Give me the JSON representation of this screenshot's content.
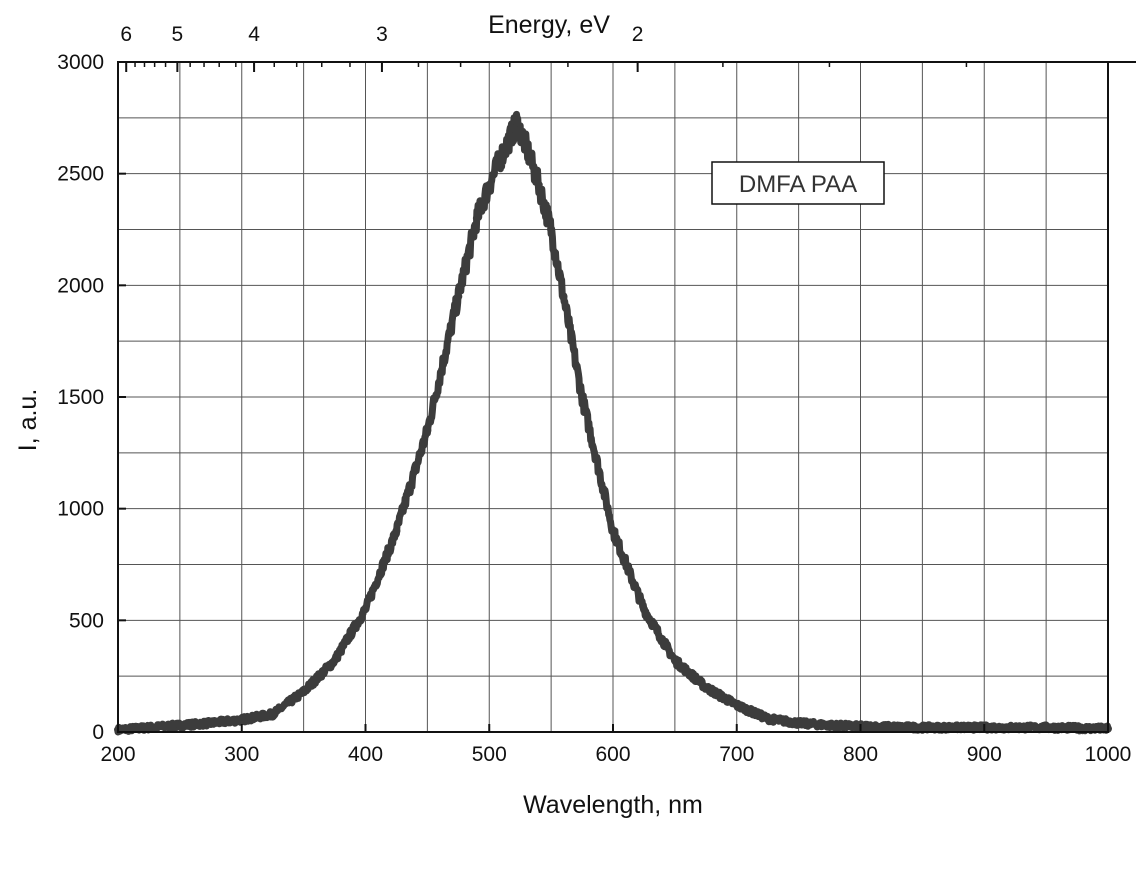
{
  "chart_data": {
    "type": "line",
    "title": "",
    "xlabel": "Wavelength, nm",
    "ylabel": "I, a.u.",
    "top_xlabel": "Energy, eV",
    "xlim": [
      200,
      1000
    ],
    "ylim": [
      0,
      3000
    ],
    "x_ticks": [
      200,
      300,
      400,
      500,
      600,
      700,
      800,
      900,
      1000
    ],
    "x_tick_labels": [
      "200",
      "300",
      "400",
      "500",
      "600",
      "700",
      "800",
      "900",
      "1000"
    ],
    "y_ticks": [
      0,
      500,
      1000,
      1500,
      2000,
      2500,
      3000
    ],
    "y_tick_labels": [
      "0",
      "500",
      "1000",
      "1500",
      "2000",
      "2500",
      "3000"
    ],
    "top_axis": {
      "label": "Energy, eV",
      "ticks_ev": [
        6,
        5,
        4,
        3,
        2
      ],
      "tick_labels": [
        "6",
        "5",
        "4",
        "3",
        "2"
      ]
    },
    "grid": true,
    "series": [
      {
        "name": "DMFA PAA",
        "color": "#3c3c3c",
        "x": [
          200,
          225,
          250,
          275,
          300,
          325,
          350,
          375,
          400,
          425,
          450,
          475,
          490,
          500,
          510,
          520,
          522,
          530,
          540,
          550,
          560,
          575,
          600,
          625,
          650,
          675,
          700,
          725,
          750,
          775,
          800,
          850,
          900,
          950,
          1000
        ],
        "y": [
          10,
          20,
          30,
          40,
          55,
          80,
          180,
          320,
          550,
          900,
          1350,
          1950,
          2300,
          2450,
          2580,
          2700,
          2730,
          2620,
          2450,
          2250,
          1950,
          1500,
          900,
          550,
          320,
          200,
          120,
          60,
          40,
          30,
          25,
          20,
          20,
          20,
          15
        ]
      }
    ],
    "legend": {
      "entries": [
        "DMFA PAA"
      ],
      "position": "top-right"
    }
  }
}
